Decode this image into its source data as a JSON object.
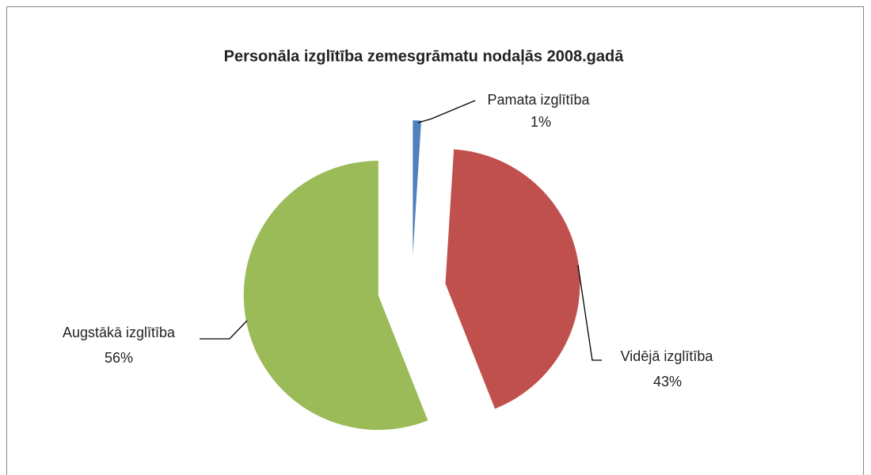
{
  "chart_data": {
    "type": "pie",
    "title": "Personāla izglītība zemesgrāmatu nodaļās 2008.gadā",
    "categories": [
      "Pamata izglītība",
      "Vidējā izglītība",
      "Augstākā izglītība"
    ],
    "values": [
      1,
      43,
      56
    ],
    "value_labels": [
      "1%",
      "43%",
      "56%"
    ],
    "colors": [
      "#4f81bd",
      "#c0504d",
      "#9bbb59"
    ]
  }
}
